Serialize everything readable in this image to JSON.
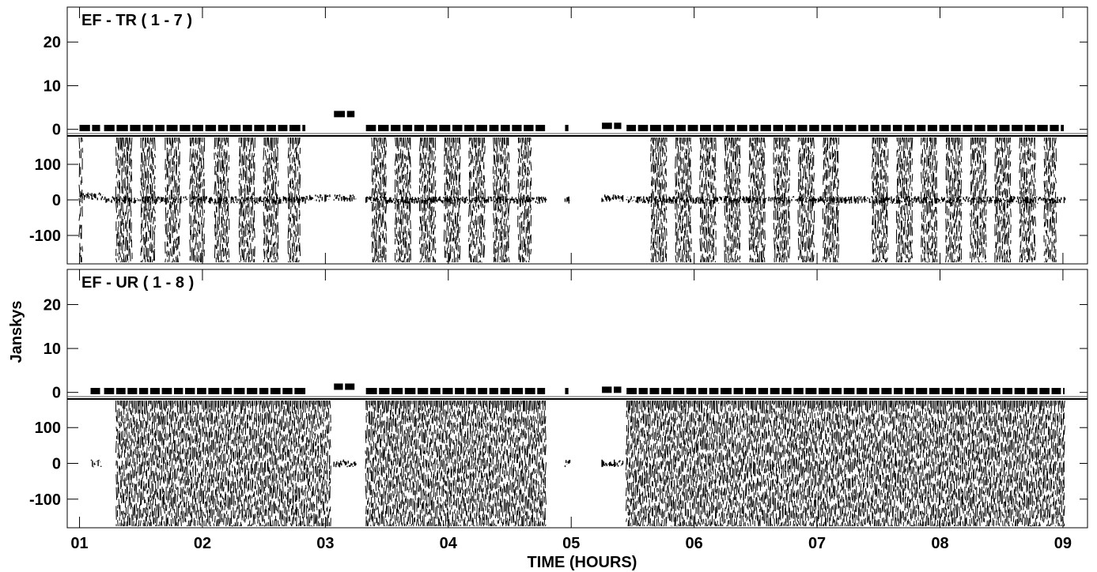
{
  "chart_data": {
    "type": "scatter",
    "xlabel": "TIME (HOURS)",
    "ylabel": "Janskys",
    "x_ticks": [
      "01",
      "02",
      "03",
      "04",
      "05",
      "06",
      "07",
      "08",
      "09"
    ],
    "xlim": [
      0.9,
      9.2
    ],
    "grid": false,
    "panels": [
      {
        "title": "EF - TR ( 1 - 7 )",
        "amplitude": {
          "ylim": [
            -1.5,
            28
          ],
          "y_ticks": [
            "0",
            "10",
            "20"
          ],
          "y_tick_values": [
            0,
            10,
            20
          ],
          "scans": [
            [
              1.0,
              1.18,
              0.3
            ],
            [
              1.2,
              2.85,
              0.3
            ],
            [
              3.07,
              3.25,
              3.5
            ],
            [
              3.33,
              4.8,
              0.3
            ],
            [
              4.95,
              4.99,
              0.3
            ],
            [
              5.25,
              5.42,
              0.8
            ],
            [
              5.45,
              9.02,
              0.3
            ]
          ]
        },
        "phase": {
          "ylim": [
            -180,
            180
          ],
          "y_ticks": [
            "100",
            "0",
            "-100"
          ],
          "y_tick_values": [
            100,
            0,
            -100
          ],
          "noisy_bands": [
            [
              1.0,
              1.03
            ],
            [
              1.3,
              1.43
            ],
            [
              1.5,
              1.62
            ],
            [
              1.7,
              1.82
            ],
            [
              1.9,
              2.02
            ],
            [
              2.1,
              2.22
            ],
            [
              2.3,
              2.43
            ],
            [
              2.5,
              2.62
            ],
            [
              2.7,
              2.8
            ],
            [
              3.38,
              3.5
            ],
            [
              3.57,
              3.7
            ],
            [
              3.77,
              3.9
            ],
            [
              3.97,
              4.1
            ],
            [
              4.17,
              4.3
            ],
            [
              4.37,
              4.5
            ],
            [
              4.57,
              4.68
            ],
            [
              5.65,
              5.78
            ],
            [
              5.85,
              5.98
            ],
            [
              6.05,
              6.18
            ],
            [
              6.25,
              6.38
            ],
            [
              6.45,
              6.58
            ],
            [
              6.65,
              6.78
            ],
            [
              6.85,
              6.98
            ],
            [
              7.05,
              7.18
            ],
            [
              7.45,
              7.58
            ],
            [
              7.65,
              7.78
            ],
            [
              7.85,
              7.98
            ],
            [
              8.05,
              8.18
            ],
            [
              8.25,
              8.38
            ],
            [
              8.45,
              8.58
            ],
            [
              8.65,
              8.78
            ],
            [
              8.85,
              8.95
            ]
          ],
          "quiet_segments": [
            [
              1.0,
              1.2,
              10
            ],
            [
              1.2,
              2.85,
              0
            ],
            [
              2.85,
              3.05,
              5
            ],
            [
              3.07,
              3.25,
              5
            ],
            [
              3.33,
              4.8,
              0
            ],
            [
              4.95,
              4.99,
              0
            ],
            [
              5.25,
              5.42,
              5
            ],
            [
              5.45,
              9.02,
              0
            ]
          ]
        }
      },
      {
        "title": "EF - UR ( 1 - 8 )",
        "amplitude": {
          "ylim": [
            -1.5,
            28
          ],
          "y_ticks": [
            "0",
            "10",
            "20"
          ],
          "y_tick_values": [
            0,
            10,
            20
          ],
          "scans": [
            [
              1.09,
              1.18,
              0.3
            ],
            [
              1.2,
              2.85,
              0.3
            ],
            [
              3.07,
              3.25,
              1.3
            ],
            [
              3.33,
              4.8,
              0.3
            ],
            [
              4.95,
              4.99,
              0.3
            ],
            [
              5.25,
              5.42,
              0.6
            ],
            [
              5.45,
              9.02,
              0.3
            ]
          ]
        },
        "phase": {
          "ylim": [
            -180,
            180
          ],
          "y_ticks": [
            "100",
            "0",
            "-100"
          ],
          "y_tick_values": [
            100,
            0,
            -100
          ],
          "noisy_bands": [
            [
              1.3,
              3.05
            ],
            [
              3.33,
              4.8
            ],
            [
              5.45,
              9.02
            ]
          ],
          "quiet_segments": [
            [
              1.09,
              1.18,
              0
            ],
            [
              3.07,
              3.25,
              0
            ],
            [
              4.95,
              4.99,
              0
            ],
            [
              5.25,
              5.42,
              0
            ]
          ]
        }
      }
    ]
  }
}
